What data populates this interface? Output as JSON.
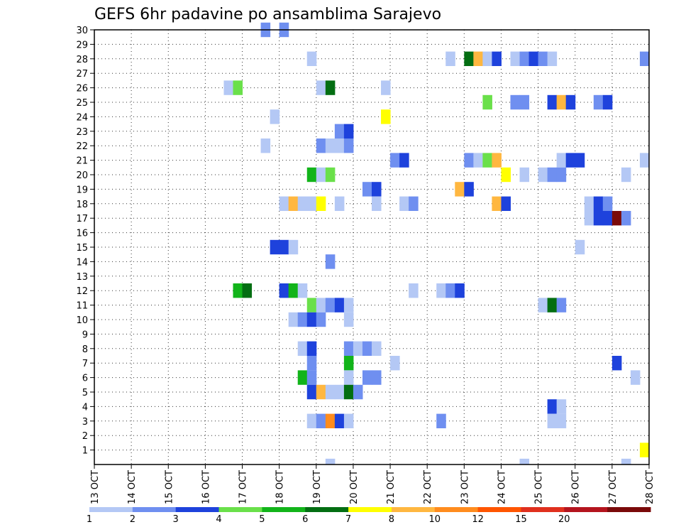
{
  "chart_data": {
    "type": "heatmap",
    "title": "GEFS 6hr padavine po ansamblima Sarajevo",
    "xlabel": "",
    "ylabel": "",
    "x_ticks": [
      "13 OCT",
      "14 OCT",
      "15 OCT",
      "16 OCT",
      "17 OCT",
      "18 OCT",
      "19 OCT",
      "20 OCT",
      "21 OCT",
      "22 OCT",
      "23 OCT",
      "24 OCT",
      "25 OCT",
      "26 OCT",
      "27 OCT",
      "28 OCT"
    ],
    "xlim_days": [
      13,
      28
    ],
    "y_ticks": [
      1,
      2,
      3,
      4,
      5,
      6,
      7,
      8,
      9,
      10,
      11,
      12,
      13,
      14,
      15,
      16,
      17,
      18,
      19,
      20,
      21,
      22,
      23,
      24,
      25,
      26,
      27,
      28,
      29,
      30
    ],
    "ylim": [
      0,
      30
    ],
    "grid": true,
    "colorbar": {
      "labels": [
        "1",
        "2",
        "3",
        "4",
        "5",
        "6",
        "7",
        "8",
        "10",
        "12",
        "15",
        "20"
      ],
      "colors": [
        "#b4c8f5",
        "#6f8ff0",
        "#1e42dc",
        "#6ae04a",
        "#12b41a",
        "#036e12",
        "#ffff00",
        "#ffb740",
        "#ff8c1e",
        "#ff5500",
        "#e0301e",
        "#b4141e",
        "#7a0a0a"
      ]
    },
    "cells": [
      {
        "m": 30,
        "t": 4.5,
        "c": 1
      },
      {
        "m": 30,
        "t": 5.0,
        "c": 1
      },
      {
        "m": 28,
        "t": 5.75,
        "c": 0
      },
      {
        "m": 28,
        "t": 9.5,
        "c": 0
      },
      {
        "m": 28,
        "t": 10.0,
        "c": 5
      },
      {
        "m": 28,
        "t": 10.25,
        "c": 7
      },
      {
        "m": 28,
        "t": 10.5,
        "c": 0
      },
      {
        "m": 28,
        "t": 10.75,
        "c": 2
      },
      {
        "m": 28,
        "t": 11.25,
        "c": 0
      },
      {
        "m": 28,
        "t": 11.5,
        "c": 1
      },
      {
        "m": 28,
        "t": 11.75,
        "c": 2
      },
      {
        "m": 28,
        "t": 12.0,
        "c": 1
      },
      {
        "m": 28,
        "t": 12.25,
        "c": 0
      },
      {
        "m": 28,
        "t": 14.75,
        "c": 1
      },
      {
        "m": 26,
        "t": 3.5,
        "c": 0
      },
      {
        "m": 26,
        "t": 3.75,
        "c": 3
      },
      {
        "m": 26,
        "t": 6.0,
        "c": 0
      },
      {
        "m": 26,
        "t": 6.25,
        "c": 5
      },
      {
        "m": 26,
        "t": 7.75,
        "c": 0
      },
      {
        "m": 25,
        "t": 10.5,
        "c": 3
      },
      {
        "m": 25,
        "t": 11.25,
        "c": 1
      },
      {
        "m": 25,
        "t": 11.5,
        "c": 1
      },
      {
        "m": 25,
        "t": 12.25,
        "c": 2
      },
      {
        "m": 25,
        "t": 12.5,
        "c": 7
      },
      {
        "m": 25,
        "t": 12.75,
        "c": 2
      },
      {
        "m": 25,
        "t": 13.5,
        "c": 1
      },
      {
        "m": 25,
        "t": 13.75,
        "c": 2
      },
      {
        "m": 24,
        "t": 4.75,
        "c": 0
      },
      {
        "m": 24,
        "t": 7.75,
        "c": 6
      },
      {
        "m": 23,
        "t": 6.5,
        "c": 1
      },
      {
        "m": 23,
        "t": 6.75,
        "c": 2
      },
      {
        "m": 22,
        "t": 4.5,
        "c": 0
      },
      {
        "m": 22,
        "t": 6.0,
        "c": 1
      },
      {
        "m": 22,
        "t": 6.25,
        "c": 0
      },
      {
        "m": 22,
        "t": 6.5,
        "c": 0
      },
      {
        "m": 22,
        "t": 6.75,
        "c": 1
      },
      {
        "m": 21,
        "t": 8.0,
        "c": 1
      },
      {
        "m": 21,
        "t": 8.25,
        "c": 2
      },
      {
        "m": 21,
        "t": 10.0,
        "c": 1
      },
      {
        "m": 21,
        "t": 10.25,
        "c": 0
      },
      {
        "m": 21,
        "t": 10.5,
        "c": 3
      },
      {
        "m": 21,
        "t": 10.75,
        "c": 7
      },
      {
        "m": 21,
        "t": 12.5,
        "c": 0
      },
      {
        "m": 21,
        "t": 12.75,
        "c": 2
      },
      {
        "m": 21,
        "t": 13.0,
        "c": 2
      },
      {
        "m": 21,
        "t": 14.75,
        "c": 0
      },
      {
        "m": 20,
        "t": 5.75,
        "c": 4
      },
      {
        "m": 20,
        "t": 6.0,
        "c": 0
      },
      {
        "m": 20,
        "t": 6.25,
        "c": 3
      },
      {
        "m": 20,
        "t": 11.0,
        "c": 6
      },
      {
        "m": 20,
        "t": 11.5,
        "c": 0
      },
      {
        "m": 20,
        "t": 12.0,
        "c": 0
      },
      {
        "m": 20,
        "t": 12.25,
        "c": 1
      },
      {
        "m": 20,
        "t": 12.5,
        "c": 1
      },
      {
        "m": 20,
        "t": 14.25,
        "c": 0
      },
      {
        "m": 19,
        "t": 7.25,
        "c": 1
      },
      {
        "m": 19,
        "t": 7.5,
        "c": 2
      },
      {
        "m": 19,
        "t": 9.75,
        "c": 7
      },
      {
        "m": 19,
        "t": 10.0,
        "c": 2
      },
      {
        "m": 18,
        "t": 5.0,
        "c": 0
      },
      {
        "m": 18,
        "t": 5.25,
        "c": 7
      },
      {
        "m": 18,
        "t": 5.5,
        "c": 0
      },
      {
        "m": 18,
        "t": 5.75,
        "c": 0
      },
      {
        "m": 18,
        "t": 6.0,
        "c": 6
      },
      {
        "m": 18,
        "t": 6.5,
        "c": 0
      },
      {
        "m": 18,
        "t": 7.5,
        "c": 0
      },
      {
        "m": 18,
        "t": 8.25,
        "c": 0
      },
      {
        "m": 18,
        "t": 8.5,
        "c": 1
      },
      {
        "m": 18,
        "t": 10.75,
        "c": 7
      },
      {
        "m": 18,
        "t": 11.0,
        "c": 2
      },
      {
        "m": 18,
        "t": 13.25,
        "c": 0
      },
      {
        "m": 18,
        "t": 13.5,
        "c": 2
      },
      {
        "m": 18,
        "t": 13.75,
        "c": 1
      },
      {
        "m": 17,
        "t": 13.25,
        "c": 0
      },
      {
        "m": 17,
        "t": 13.5,
        "c": 2
      },
      {
        "m": 17,
        "t": 13.75,
        "c": 2
      },
      {
        "m": 17,
        "t": 14.0,
        "c": 12
      },
      {
        "m": 17,
        "t": 14.25,
        "c": 1
      },
      {
        "m": 15,
        "t": 4.75,
        "c": 2
      },
      {
        "m": 15,
        "t": 5.0,
        "c": 2
      },
      {
        "m": 15,
        "t": 5.25,
        "c": 0
      },
      {
        "m": 15,
        "t": 13.0,
        "c": 0
      },
      {
        "m": 14,
        "t": 6.25,
        "c": 1
      },
      {
        "m": 12,
        "t": 3.75,
        "c": 4
      },
      {
        "m": 12,
        "t": 4.0,
        "c": 5
      },
      {
        "m": 12,
        "t": 5.0,
        "c": 2
      },
      {
        "m": 12,
        "t": 5.25,
        "c": 4
      },
      {
        "m": 12,
        "t": 5.5,
        "c": 0
      },
      {
        "m": 12,
        "t": 8.5,
        "c": 0
      },
      {
        "m": 12,
        "t": 9.25,
        "c": 0
      },
      {
        "m": 12,
        "t": 9.5,
        "c": 1
      },
      {
        "m": 12,
        "t": 9.75,
        "c": 2
      },
      {
        "m": 11,
        "t": 5.75,
        "c": 3
      },
      {
        "m": 11,
        "t": 6.0,
        "c": 0
      },
      {
        "m": 11,
        "t": 6.25,
        "c": 1
      },
      {
        "m": 11,
        "t": 6.5,
        "c": 2
      },
      {
        "m": 11,
        "t": 6.75,
        "c": 0
      },
      {
        "m": 11,
        "t": 12.0,
        "c": 0
      },
      {
        "m": 11,
        "t": 12.25,
        "c": 5
      },
      {
        "m": 11,
        "t": 12.5,
        "c": 1
      },
      {
        "m": 10,
        "t": 5.25,
        "c": 0
      },
      {
        "m": 10,
        "t": 5.5,
        "c": 1
      },
      {
        "m": 10,
        "t": 5.75,
        "c": 2
      },
      {
        "m": 10,
        "t": 6.0,
        "c": 1
      },
      {
        "m": 10,
        "t": 6.75,
        "c": 0
      },
      {
        "m": 8,
        "t": 5.5,
        "c": 0
      },
      {
        "m": 8,
        "t": 5.75,
        "c": 2
      },
      {
        "m": 8,
        "t": 6.75,
        "c": 1
      },
      {
        "m": 8,
        "t": 7.0,
        "c": 0
      },
      {
        "m": 8,
        "t": 7.25,
        "c": 1
      },
      {
        "m": 8,
        "t": 7.5,
        "c": 0
      },
      {
        "m": 7,
        "t": 5.75,
        "c": 1
      },
      {
        "m": 7,
        "t": 6.75,
        "c": 4
      },
      {
        "m": 7,
        "t": 8.0,
        "c": 0
      },
      {
        "m": 7,
        "t": 14.0,
        "c": 2
      },
      {
        "m": 6,
        "t": 5.5,
        "c": 4
      },
      {
        "m": 6,
        "t": 5.75,
        "c": 1
      },
      {
        "m": 6,
        "t": 6.75,
        "c": 0
      },
      {
        "m": 6,
        "t": 7.25,
        "c": 1
      },
      {
        "m": 6,
        "t": 7.5,
        "c": 1
      },
      {
        "m": 6,
        "t": 14.5,
        "c": 0
      },
      {
        "m": 5,
        "t": 5.75,
        "c": 2
      },
      {
        "m": 5,
        "t": 6.0,
        "c": 7
      },
      {
        "m": 5,
        "t": 6.25,
        "c": 0
      },
      {
        "m": 5,
        "t": 6.5,
        "c": 0
      },
      {
        "m": 5,
        "t": 6.75,
        "c": 5
      },
      {
        "m": 5,
        "t": 7.0,
        "c": 1
      },
      {
        "m": 4,
        "t": 12.25,
        "c": 2
      },
      {
        "m": 4,
        "t": 12.5,
        "c": 0
      },
      {
        "m": 3,
        "t": 5.75,
        "c": 0
      },
      {
        "m": 3,
        "t": 6.0,
        "c": 1
      },
      {
        "m": 3,
        "t": 6.25,
        "c": 8
      },
      {
        "m": 3,
        "t": 6.5,
        "c": 2
      },
      {
        "m": 3,
        "t": 6.75,
        "c": 0
      },
      {
        "m": 3,
        "t": 9.25,
        "c": 1
      },
      {
        "m": 3,
        "t": 12.25,
        "c": 0
      },
      {
        "m": 3,
        "t": 12.5,
        "c": 0
      },
      {
        "m": 1,
        "t": 14.75,
        "c": 6
      },
      {
        "m": 0,
        "t": 6.25,
        "c": 0
      },
      {
        "m": 0,
        "t": 11.5,
        "c": 0
      },
      {
        "m": 0,
        "t": 14.25,
        "c": 0
      }
    ]
  }
}
